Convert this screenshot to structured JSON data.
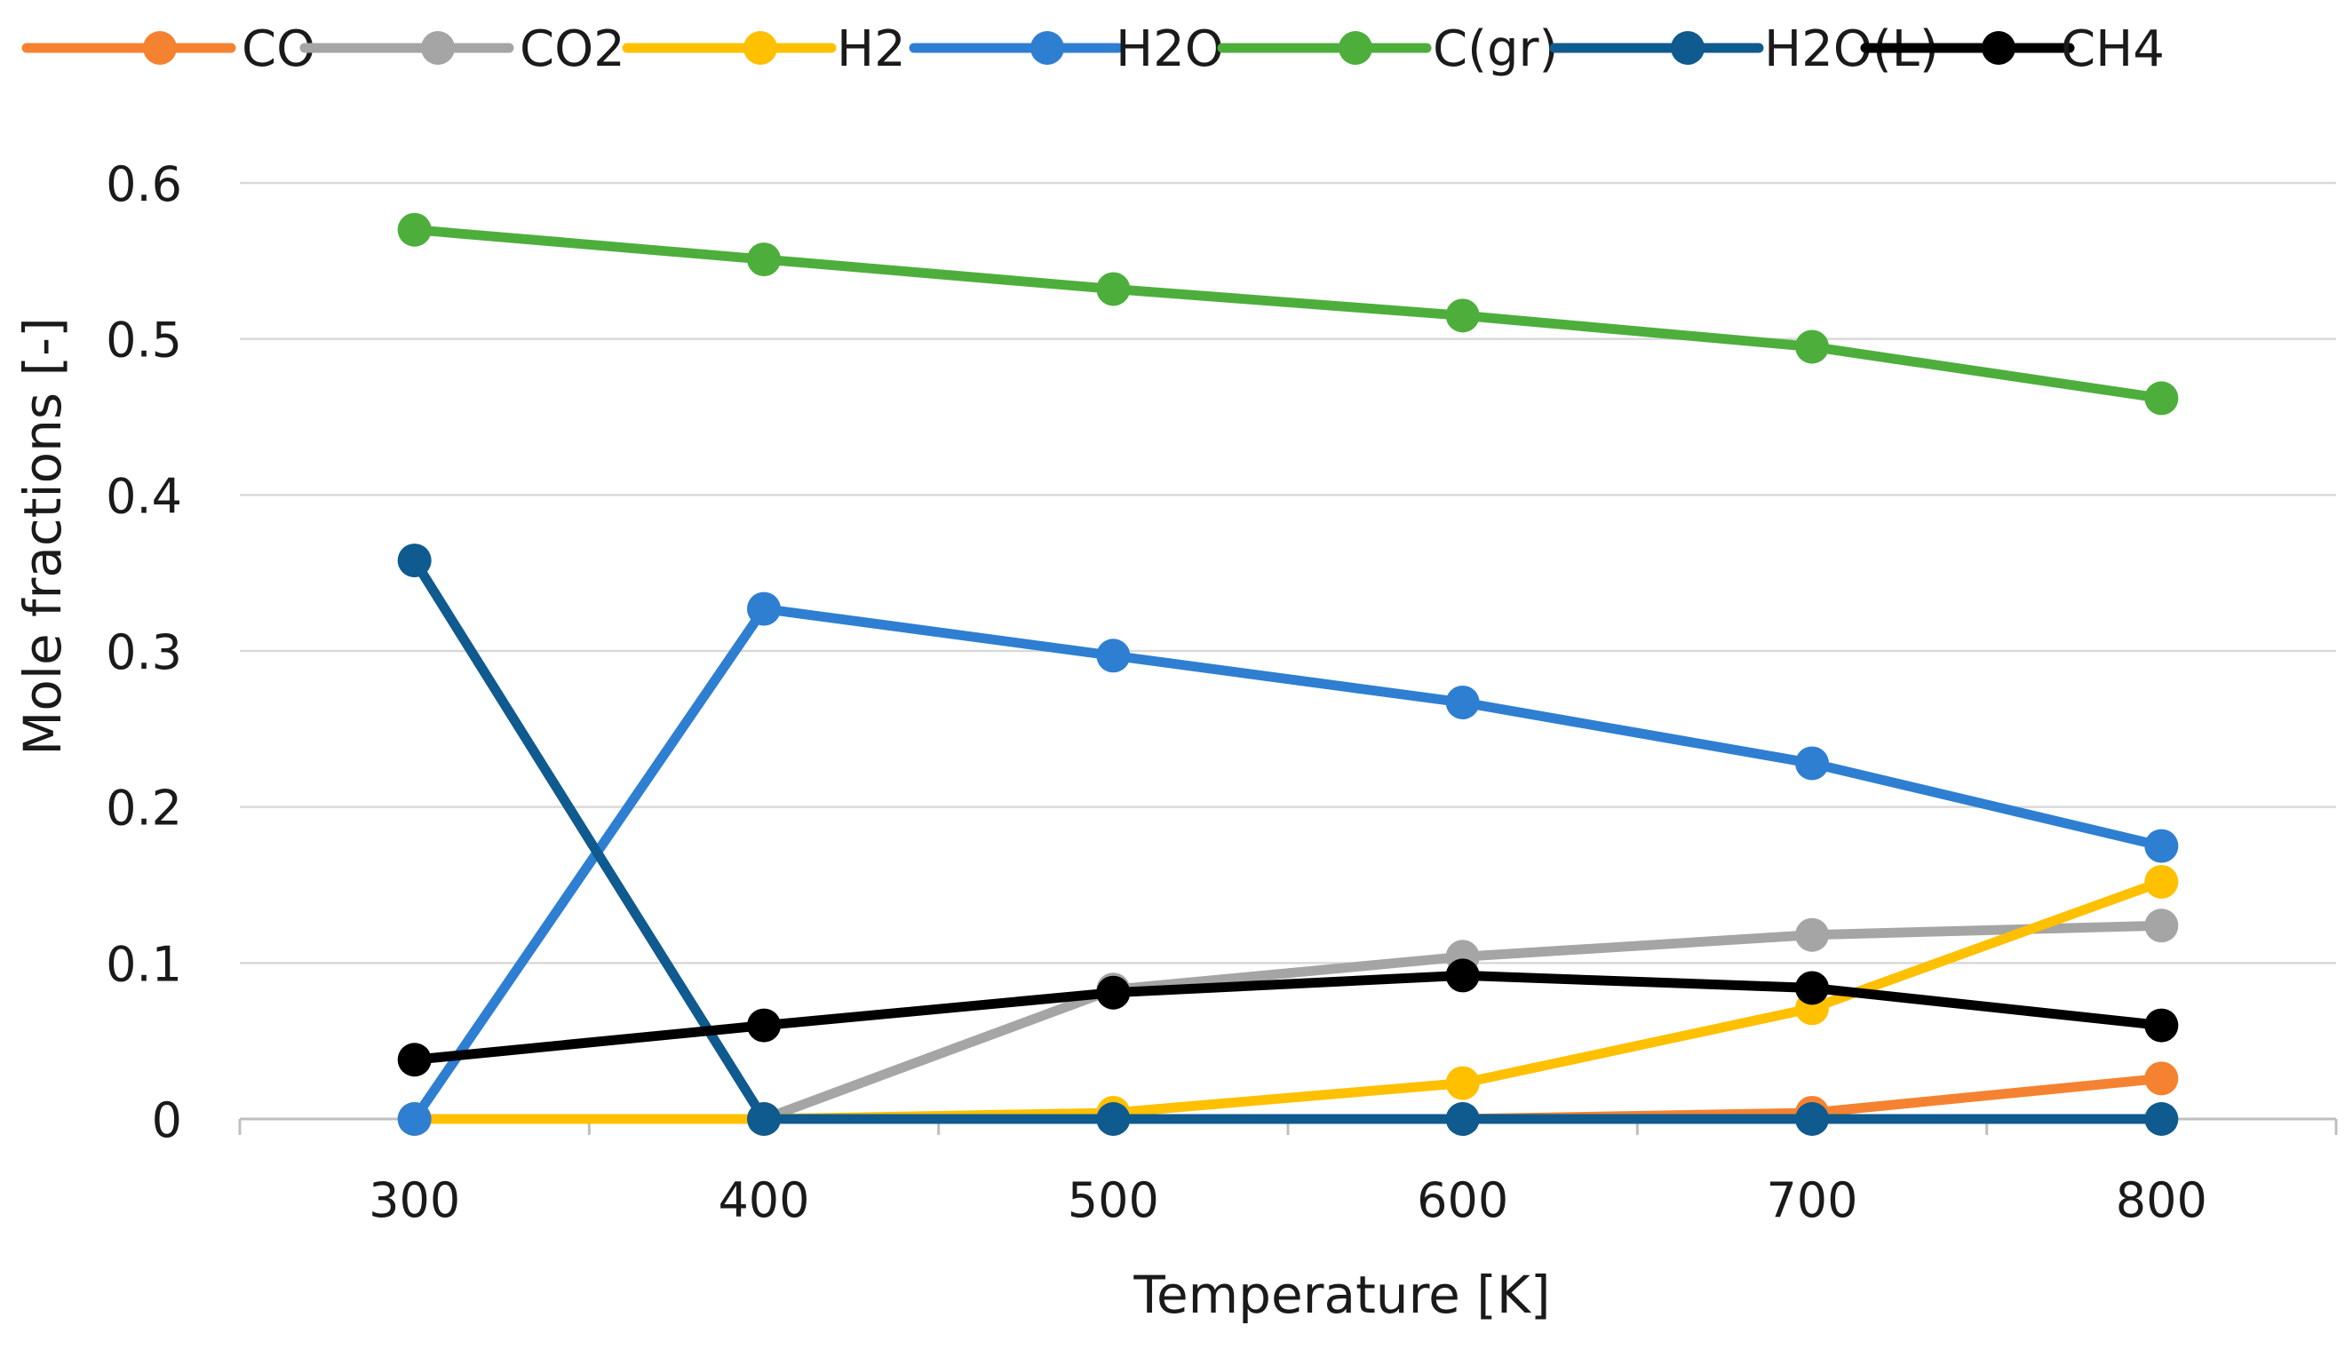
{
  "chart_data": {
    "type": "line",
    "title": "",
    "xlabel": "Temperature [K]",
    "ylabel": "Mole fractions [-]",
    "x": [
      300,
      400,
      500,
      600,
      700,
      800
    ],
    "xlim": [
      250,
      850
    ],
    "ylim": [
      0,
      0.6
    ],
    "yticks": [
      0,
      0.1,
      0.2,
      0.3,
      0.4,
      0.5,
      0.6
    ],
    "ytick_labels": [
      "0",
      "0.1",
      "0.2",
      "0.3",
      "0.4",
      "0.5",
      "0.6"
    ],
    "xtick_labels": [
      "300",
      "400",
      "500",
      "600",
      "700",
      "800"
    ],
    "grid": "horizontal",
    "legend_position": "top",
    "series": [
      {
        "name": "CO",
        "color": "#F58230",
        "values": [
          0,
          0,
          0,
          0,
          0.004,
          0.026
        ]
      },
      {
        "name": "CO2",
        "color": "#A5A5A5",
        "values": [
          0,
          0,
          0.083,
          0.104,
          0.118,
          0.124
        ]
      },
      {
        "name": "H2",
        "color": "#FFC000",
        "values": [
          0,
          0,
          0.004,
          0.023,
          0.071,
          0.152
        ]
      },
      {
        "name": "H2O",
        "color": "#2E7FD1",
        "values": [
          0,
          0.327,
          0.297,
          0.267,
          0.228,
          0.175
        ]
      },
      {
        "name": "C(gr)",
        "color": "#4DAE3C",
        "values": [
          0.57,
          0.551,
          0.532,
          0.515,
          0.495,
          0.462
        ]
      },
      {
        "name": "H2O(L)",
        "color": "#0F5A8E",
        "values": [
          0.358,
          0,
          0,
          0,
          0,
          0
        ]
      },
      {
        "name": "CH4",
        "color": "#000000",
        "values": [
          0.038,
          0.06,
          0.081,
          0.092,
          0.084,
          0.06
        ]
      }
    ]
  }
}
